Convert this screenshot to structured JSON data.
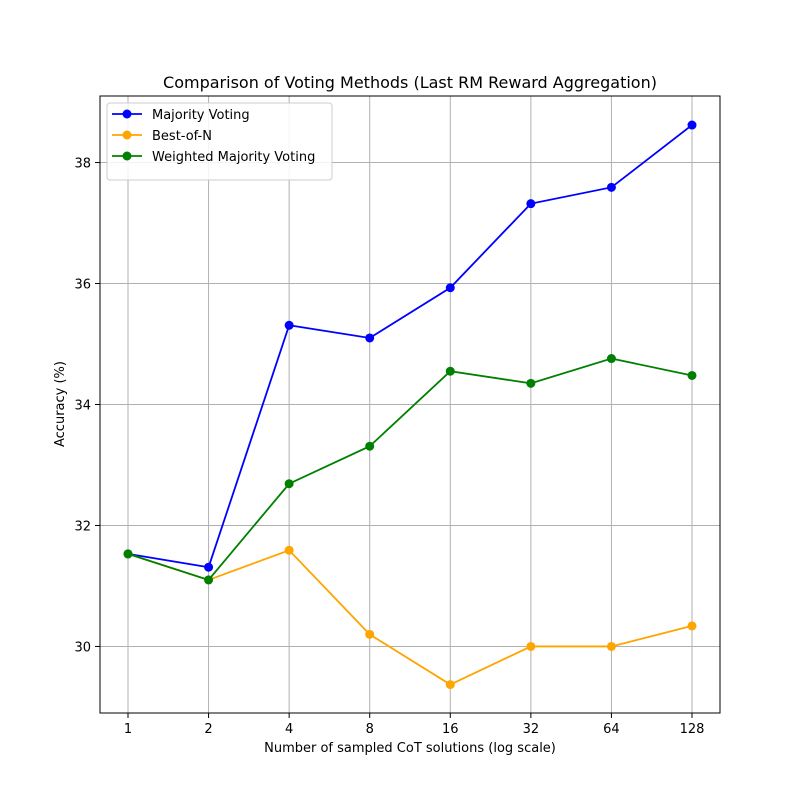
{
  "chart_data": {
    "type": "line",
    "title": "Comparison of Voting Methods (Last RM Reward Aggregation)",
    "xlabel": "Number of sampled CoT solutions (log scale)",
    "ylabel": "Accuracy (%)",
    "x_scale": "log2",
    "x": [
      1,
      2,
      4,
      8,
      16,
      32,
      64,
      128
    ],
    "x_tick_labels": [
      "1",
      "2",
      "4",
      "8",
      "16",
      "32",
      "64",
      "128"
    ],
    "ylim": [
      28.9,
      39.1
    ],
    "y_ticks": [
      30,
      32,
      34,
      36,
      38
    ],
    "grid": true,
    "legend_position": "top-left",
    "series": [
      {
        "name": "Majority Voting",
        "color": "#0000ff",
        "values": [
          31.53,
          31.31,
          35.31,
          35.1,
          35.93,
          37.32,
          37.59,
          38.62
        ]
      },
      {
        "name": "Best-of-N",
        "color": "#ffa500",
        "values": [
          31.53,
          31.1,
          31.59,
          30.2,
          29.37,
          30.0,
          30.0,
          30.34
        ]
      },
      {
        "name": "Weighted Majority Voting",
        "color": "#008000",
        "values": [
          31.53,
          31.1,
          32.69,
          33.31,
          34.55,
          34.35,
          34.76,
          34.48
        ]
      }
    ]
  }
}
